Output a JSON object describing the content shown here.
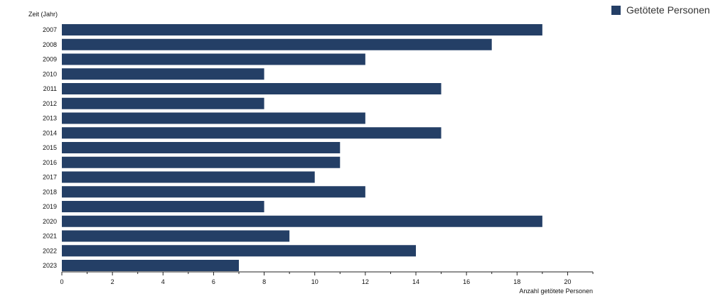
{
  "chart_data": {
    "type": "bar",
    "orientation": "horizontal",
    "ylabel": "Zeit (Jahr)",
    "xlabel": "Anzahl getötete Personen",
    "categories": [
      "2007",
      "2008",
      "2009",
      "2010",
      "2011",
      "2012",
      "2013",
      "2014",
      "2015",
      "2016",
      "2017",
      "2018",
      "2019",
      "2020",
      "2021",
      "2022",
      "2023"
    ],
    "series": [
      {
        "name": "Getötete Personen",
        "values": [
          19,
          17,
          12,
          8,
          15,
          8,
          12,
          15,
          11,
          11,
          10,
          12,
          8,
          19,
          9,
          14,
          7
        ]
      }
    ],
    "xlim": [
      0,
      21
    ],
    "xticks": [
      "0",
      "2",
      "4",
      "6",
      "8",
      "10",
      "12",
      "14",
      "16",
      "18",
      "20"
    ],
    "legend": "top-right",
    "grid": false,
    "bar_color": "#243f66"
  }
}
